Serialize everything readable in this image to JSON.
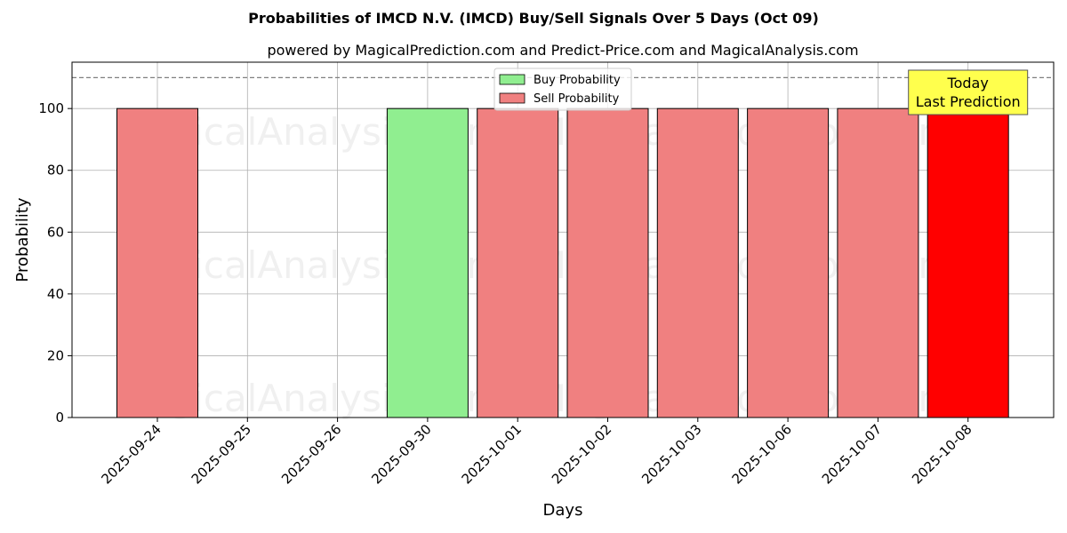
{
  "chart_data": {
    "type": "bar",
    "title": "Probabilities of IMCD N.V. (IMCD) Buy/Sell Signals Over 5 Days (Oct 09)",
    "subtitle": "powered by MagicalPrediction.com and Predict-Price.com and MagicalAnalysis.com",
    "xlabel": "Days",
    "ylabel": "Probability",
    "ylim": [
      0,
      115
    ],
    "yticks": [
      0,
      20,
      40,
      60,
      80,
      100
    ],
    "categories": [
      "2025-09-24",
      "2025-09-25",
      "2025-09-26",
      "2025-09-30",
      "2025-10-01",
      "2025-10-02",
      "2025-10-03",
      "2025-10-06",
      "2025-10-07",
      "2025-10-08"
    ],
    "series": [
      {
        "name": "Buy Probability",
        "color": "#90ee90",
        "values": [
          0,
          0,
          0,
          100,
          0,
          0,
          0,
          0,
          0,
          0
        ]
      },
      {
        "name": "Sell Probability",
        "color": "#f08080",
        "values": [
          100,
          0,
          0,
          0,
          100,
          100,
          100,
          100,
          100,
          100
        ]
      }
    ],
    "highlight": {
      "category": "2025-10-08",
      "color": "#ff0000"
    },
    "reference_line": {
      "y": 110,
      "style": "dashed",
      "color": "#808080"
    },
    "annotation": {
      "lines": [
        "Today",
        "Last Prediction"
      ],
      "category": "2025-10-08",
      "background": "#ffff4d"
    },
    "legend": {
      "placement": "top-center"
    },
    "grid": true,
    "watermarks": [
      "MagicalAnalysis.com",
      "MagicalPrediction.com"
    ]
  }
}
